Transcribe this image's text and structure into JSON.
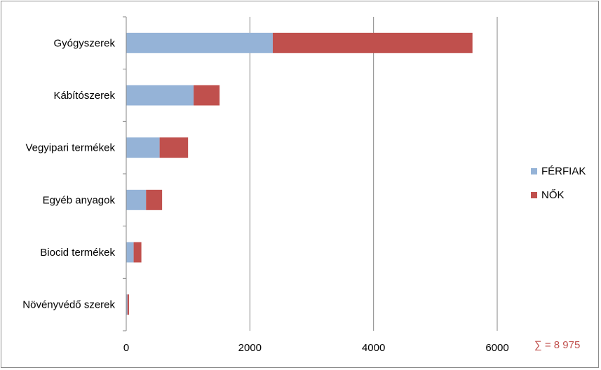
{
  "chart_data": {
    "type": "bar",
    "orientation": "horizontal",
    "stacked": true,
    "categories": [
      "Gyógyszerek",
      "Kábítószerek",
      "Vegyipari termékek",
      "Egyéb anyagok",
      "Biocid termékek",
      "Növényvédő szerek"
    ],
    "series": [
      {
        "name": "FÉRFIAK",
        "color": "#95b3d7",
        "values": [
          2370,
          1090,
          540,
          320,
          120,
          20
        ]
      },
      {
        "name": "NŐK",
        "color": "#c0504d",
        "values": [
          3230,
          420,
          460,
          260,
          125,
          25
        ]
      }
    ],
    "x_ticks": [
      "0",
      "2000",
      "4000",
      "6000"
    ],
    "xlim": [
      0,
      6000
    ],
    "grid": "vertical",
    "legend_position": "right",
    "annotation": "∑ = 8 975"
  }
}
